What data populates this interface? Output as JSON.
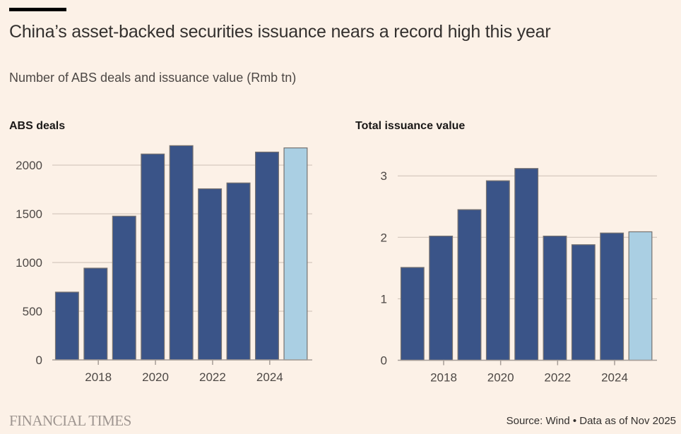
{
  "header": {
    "title": "China’s asset-backed securities issuance nears a record high this year",
    "subtitle": "Number of ABS deals and issuance value (Rmb tn)"
  },
  "colors": {
    "background": "#fcf1e7",
    "bar": "#3a5488",
    "bar_highlight": "#aacfe3",
    "bar_stroke": "#767270",
    "grid": "#cbbfb5",
    "axis": "#a69d97"
  },
  "chart_data": [
    {
      "type": "bar",
      "title": "ABS deals",
      "xlabel": "",
      "ylabel": "",
      "categories": [
        "2017",
        "2018",
        "2019",
        "2020",
        "2021",
        "2022",
        "2023",
        "2024",
        "2025"
      ],
      "values": [
        696,
        942,
        1476,
        2114,
        2200,
        1757,
        1817,
        2134,
        2177
      ],
      "highlight_index": 8,
      "ylim": [
        0,
        2250
      ],
      "yticks": [
        0,
        500,
        1000,
        1500,
        2000
      ],
      "ytick_labels": [
        "0",
        "500",
        "1000",
        "1500",
        "2000"
      ],
      "xticks": [
        "2018",
        "2020",
        "2022",
        "2024"
      ],
      "grid": true,
      "legend": "none"
    },
    {
      "type": "bar",
      "title": "Total issuance value",
      "xlabel": "",
      "ylabel": "Rmb tn",
      "categories": [
        "2017",
        "2018",
        "2019",
        "2020",
        "2021",
        "2022",
        "2023",
        "2024",
        "2025"
      ],
      "values": [
        1.51,
        2.02,
        2.45,
        2.92,
        3.12,
        2.02,
        1.88,
        2.07,
        2.09
      ],
      "highlight_index": 8,
      "ylim": [
        0,
        3.2
      ],
      "yticks": [
        0,
        1,
        2,
        3
      ],
      "ytick_labels": [
        "0",
        "1",
        "2",
        "3"
      ],
      "xticks": [
        "2018",
        "2020",
        "2022",
        "2024"
      ],
      "grid": true,
      "legend": "none"
    }
  ],
  "footer": {
    "brand": "FINANCIAL TIMES",
    "source": "Source: Wind • Data as of Nov 2025"
  }
}
